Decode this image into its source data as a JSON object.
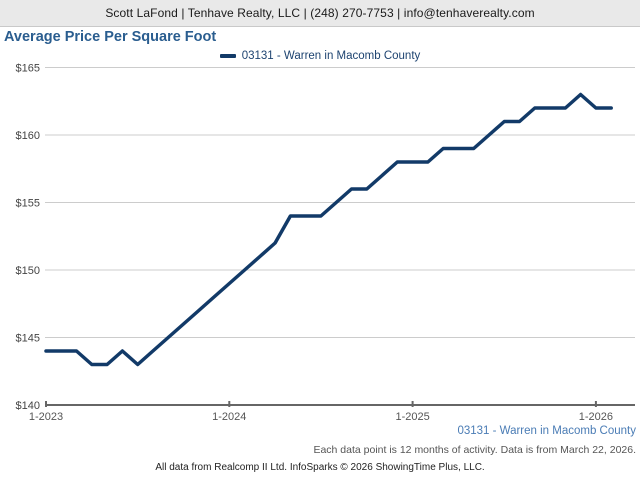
{
  "header": {
    "contact_line": "Scott LaFond | Tenhave Realty, LLC | (248) 270-7753 | info@tenhaverealty.com"
  },
  "title": "Average Price Per Square Foot",
  "legend": {
    "label": "03131 - Warren in Macomb County"
  },
  "chart_data": {
    "type": "line",
    "title": "Average Price Per Square Foot",
    "x_start": "1-2023",
    "x_interval": "month",
    "x_tick_labels": [
      "1-2023",
      "1-2024",
      "1-2025",
      "1-2026"
    ],
    "x_tick_month_index": [
      0,
      12,
      24,
      36
    ],
    "y_ticks": [
      140,
      145,
      150,
      155,
      160,
      165
    ],
    "y_tick_prefix": "$",
    "ylim": [
      140,
      165
    ],
    "grid": true,
    "legend_position": "top-center",
    "series": [
      {
        "name": "03131 - Warren in Macomb County",
        "color": "#123a68",
        "values": [
          144,
          144,
          144,
          143,
          143,
          144,
          143,
          144,
          145,
          146,
          147,
          148,
          149,
          150,
          151,
          152,
          154,
          154,
          154,
          155,
          156,
          156,
          157,
          158,
          158,
          158,
          159,
          159,
          159,
          160,
          161,
          161,
          162,
          162,
          162,
          163,
          162,
          162
        ]
      }
    ]
  },
  "footer": {
    "series_label": "03131 - Warren in Macomb County",
    "note": "Each data point is 12 months of activity. Data is from March 22, 2026.",
    "attribution": "All data from Realcomp II Ltd. InfoSparks © 2026 ShowingTime Plus, LLC."
  },
  "colors": {
    "line": "#123a68",
    "title": "#2a5d8f",
    "legend_text": "#1d4370",
    "footer_series": "#4a7cb5",
    "gridline": "#cccccc",
    "axis": "#666666",
    "topbar_bg": "#e9e9e9"
  }
}
